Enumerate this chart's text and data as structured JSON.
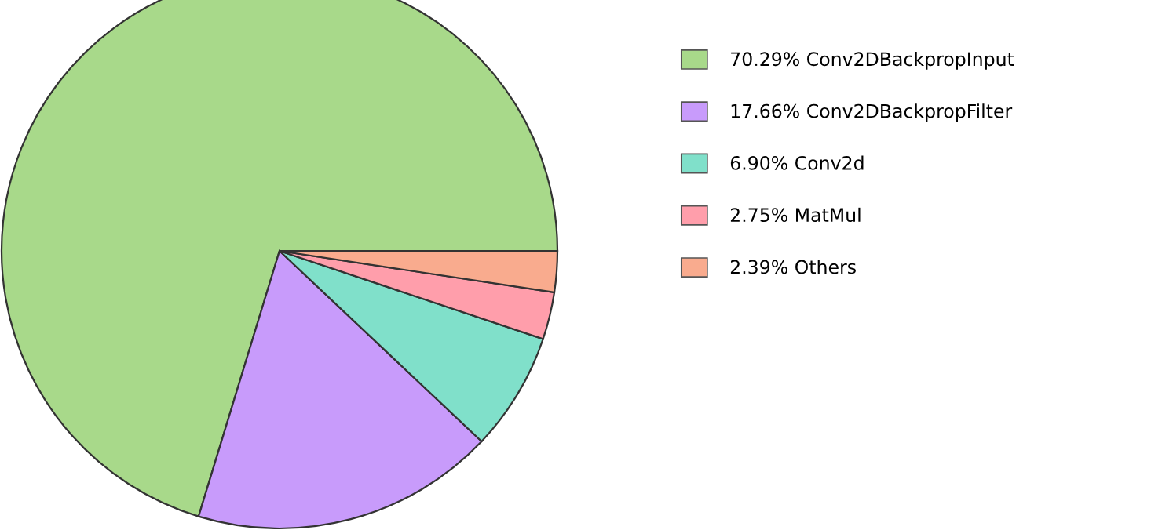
{
  "chart_data": {
    "type": "pie",
    "categories": [
      "70.29% Conv2DBackpropInput",
      "17.66% Conv2DBackpropFilter",
      "6.90% Conv2d",
      "2.75% MatMul",
      "2.39% Others"
    ],
    "values": [
      70.29,
      17.66,
      6.9,
      2.75,
      2.39
    ],
    "colors": [
      "#a8d98a",
      "#c89bfb",
      "#80e0ca",
      "#ff9eab",
      "#f9ab8e"
    ],
    "legend": "right"
  }
}
